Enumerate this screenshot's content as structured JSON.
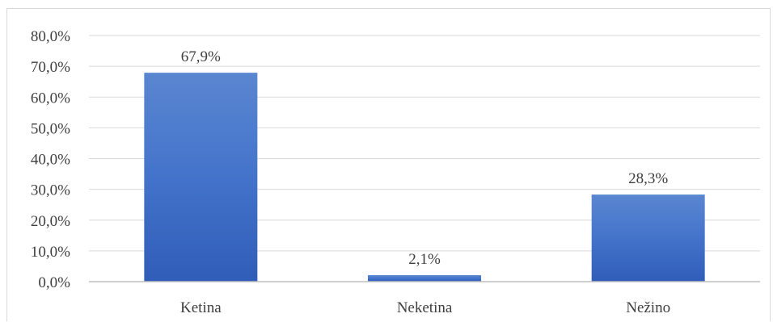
{
  "chart_data": {
    "type": "bar",
    "categories": [
      "Ketina",
      "Neketina",
      "Nežino"
    ],
    "values": [
      67.9,
      2.1,
      28.3
    ],
    "data_labels": [
      "67,9%",
      "2,1%",
      "28,3%"
    ],
    "title": "",
    "xlabel": "",
    "ylabel": "",
    "ylim": [
      0,
      80
    ],
    "yticks": [
      0,
      10,
      20,
      30,
      40,
      50,
      60,
      70,
      80
    ],
    "ytick_labels": [
      "0,0%",
      "10,0%",
      "20,0%",
      "30,0%",
      "40,0%",
      "50,0%",
      "60,0%",
      "70,0%",
      "80,0%"
    ],
    "grid": true,
    "legend": "none",
    "colors": {
      "bar_top": "#5a86d0",
      "bar_bottom": "#2f5db8",
      "grid": "#d9d9d9",
      "axis": "#bfbfbf",
      "text": "#404040"
    }
  }
}
